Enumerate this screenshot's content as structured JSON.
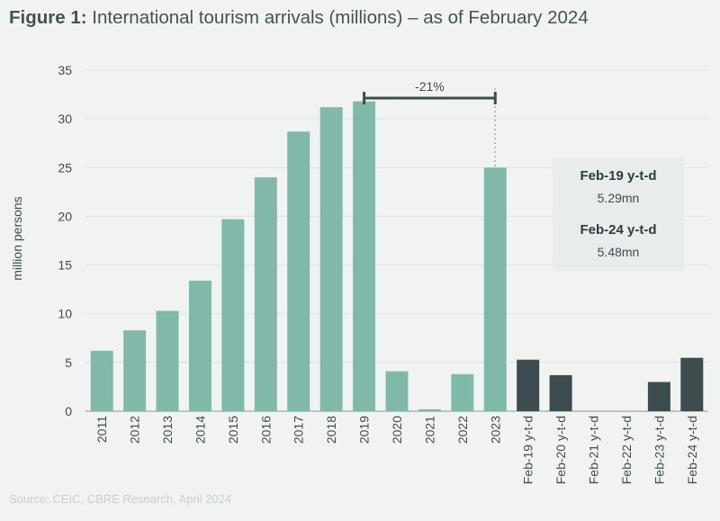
{
  "title": {
    "bold": "Figure 1:",
    "rest": "International tourism arrivals (millions) – as of February 2024"
  },
  "source": "Source: CEIC, CBRE Research, April 2024",
  "colors": {
    "annual": "#80b9aa",
    "ytd": "#3c4c4f",
    "background": "#f1f3f3"
  },
  "chart_data": {
    "type": "bar",
    "ylabel": "million persons",
    "ylim": [
      0,
      35
    ],
    "yticks": [
      0,
      5,
      10,
      15,
      20,
      25,
      30,
      35
    ],
    "grid": true,
    "categories": [
      "2011",
      "2012",
      "2013",
      "2014",
      "2015",
      "2016",
      "2017",
      "2018",
      "2019",
      "2020",
      "2021",
      "2022",
      "2023",
      "Feb-19 y-t-d",
      "Feb-20 y-t-d",
      "Feb-21 y-t-d",
      "Feb-22 y-t-d",
      "Feb-23 y-t-d",
      "Feb-24 y-t-d"
    ],
    "values": [
      6.2,
      8.3,
      10.3,
      13.4,
      19.7,
      24.0,
      28.7,
      31.2,
      31.8,
      4.1,
      0.2,
      3.8,
      25.0,
      5.29,
      3.7,
      0.0,
      0.0,
      3.0,
      5.48
    ],
    "series_kind": [
      "annual",
      "annual",
      "annual",
      "annual",
      "annual",
      "annual",
      "annual",
      "annual",
      "annual",
      "annual",
      "annual",
      "annual",
      "annual",
      "ytd",
      "ytd",
      "ytd",
      "ytd",
      "ytd",
      "ytd"
    ],
    "annotation": {
      "label": "-21%",
      "from": "2019",
      "to": "2023"
    },
    "summary_box": [
      {
        "label": "Feb-19 y-t-d",
        "value": "5.29mn"
      },
      {
        "label": "Feb-24 y-t-d",
        "value": "5.48mn"
      }
    ]
  }
}
